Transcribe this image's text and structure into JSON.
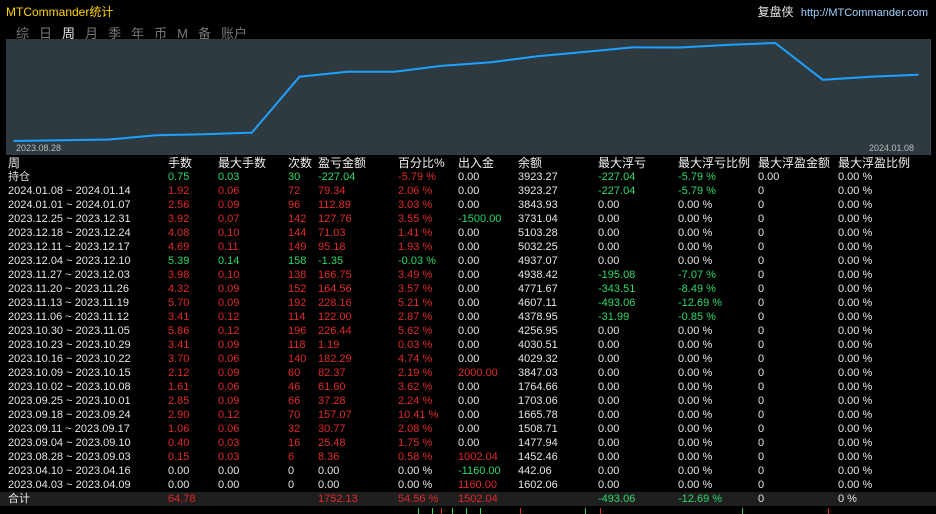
{
  "window": {
    "title": "MTCommander统计",
    "brand": "复盘侠",
    "url": "http://MTCommander.com"
  },
  "tabs": [
    {
      "label": "综",
      "active": false
    },
    {
      "label": "日",
      "active": false
    },
    {
      "label": "周",
      "active": true
    },
    {
      "label": "月",
      "active": false
    },
    {
      "label": "季",
      "active": false
    },
    {
      "label": "年",
      "active": false
    },
    {
      "label": "币",
      "active": false
    },
    {
      "label": "M",
      "active": false
    },
    {
      "label": "备",
      "active": false
    },
    {
      "label": "账户",
      "active": false
    }
  ],
  "colors": {
    "chart_bg": "#2e3a40",
    "line": "#1ea0ff",
    "profit": "#e02a2a",
    "loss": "#2ad96a",
    "title": "#ffd200"
  },
  "chart_data": {
    "type": "line",
    "x_start_label": "2023.08.28",
    "x_end_label": "2024.01.08",
    "x": [
      "2023.08.28",
      "2023.09.04",
      "2023.09.11",
      "2023.09.18",
      "2023.09.25",
      "2023.10.02",
      "2023.10.09",
      "2023.10.16",
      "2023.10.23",
      "2023.10.30",
      "2023.11.06",
      "2023.11.13",
      "2023.11.20",
      "2023.11.27",
      "2023.12.04",
      "2023.12.11",
      "2023.12.18",
      "2023.12.25",
      "2024.01.01",
      "2024.01.08"
    ],
    "values": [
      1452.46,
      1477.94,
      1508.71,
      1665.78,
      1703.06,
      1764.66,
      3847.03,
      4029.32,
      4030.51,
      4256.95,
      4378.95,
      4607.11,
      4771.67,
      4938.42,
      4937.07,
      5032.25,
      5103.28,
      3731.04,
      3843.93,
      3923.27
    ],
    "grid": false
  },
  "table": {
    "columns": [
      "周",
      "手数",
      "最大手数",
      "次数",
      "盈亏金额",
      "百分比%",
      "出入金",
      "余额",
      "最大浮亏",
      "最大浮亏比例",
      "最大浮盈金额",
      "最大浮盈比例"
    ],
    "holding": {
      "cells": [
        "持仓",
        "0.75",
        "0.03",
        "30",
        "-227.04",
        "-5.79 %",
        "0.00",
        "3923.27",
        "-227.04",
        "-5.79 %",
        "0.00",
        "0.00 %"
      ],
      "colors": [
        "neu",
        "neg",
        "neg",
        "neg",
        "neg",
        "pos",
        "neu",
        "neu",
        "neg",
        "neg",
        "neu",
        "neu"
      ]
    },
    "rows": [
      {
        "cells": [
          "2024.01.08 ~ 2024.01.14",
          "1.92",
          "0.06",
          "72",
          "79.34",
          "2.06 %",
          "0.00",
          "3923.27",
          "-227.04",
          "-5.79 %",
          "0",
          "0.00 %"
        ],
        "colors": [
          "neu",
          "pos",
          "pos",
          "pos",
          "pos",
          "pos",
          "neu",
          "neu",
          "neg",
          "neg",
          "neu",
          "neu"
        ]
      },
      {
        "cells": [
          "2024.01.01 ~ 2024.01.07",
          "2.56",
          "0.09",
          "96",
          "112.89",
          "3.03 %",
          "0.00",
          "3843.93",
          "0.00",
          "0.00 %",
          "0",
          "0.00 %"
        ],
        "colors": [
          "neu",
          "pos",
          "pos",
          "pos",
          "pos",
          "pos",
          "neu",
          "neu",
          "neu",
          "neu",
          "neu",
          "neu"
        ]
      },
      {
        "cells": [
          "2023.12.25 ~ 2023.12.31",
          "3.92",
          "0.07",
          "142",
          "127.76",
          "3.55 %",
          "-1500.00",
          "3731.04",
          "0.00",
          "0.00 %",
          "0",
          "0.00 %"
        ],
        "colors": [
          "neu",
          "pos",
          "pos",
          "pos",
          "pos",
          "pos",
          "neg",
          "neu",
          "neu",
          "neu",
          "neu",
          "neu"
        ]
      },
      {
        "cells": [
          "2023.12.18 ~ 2023.12.24",
          "4.08",
          "0.10",
          "144",
          "71.03",
          "1.41 %",
          "0.00",
          "5103.28",
          "0.00",
          "0.00 %",
          "0",
          "0.00 %"
        ],
        "colors": [
          "neu",
          "pos",
          "pos",
          "pos",
          "pos",
          "pos",
          "neu",
          "neu",
          "neu",
          "neu",
          "neu",
          "neu"
        ]
      },
      {
        "cells": [
          "2023.12.11 ~ 2023.12.17",
          "4.69",
          "0.11",
          "149",
          "95.18",
          "1.93 %",
          "0.00",
          "5032.25",
          "0.00",
          "0.00 %",
          "0",
          "0.00 %"
        ],
        "colors": [
          "neu",
          "pos",
          "pos",
          "pos",
          "pos",
          "pos",
          "neu",
          "neu",
          "neu",
          "neu",
          "neu",
          "neu"
        ]
      },
      {
        "cells": [
          "2023.12.04 ~ 2023.12.10",
          "5.39",
          "0.14",
          "158",
          "-1.35",
          "-0.03 %",
          "0.00",
          "4937.07",
          "0.00",
          "0.00 %",
          "0",
          "0.00 %"
        ],
        "colors": [
          "neu",
          "neg",
          "neg",
          "neg",
          "neg",
          "neg",
          "neu",
          "neu",
          "neu",
          "neu",
          "neu",
          "neu"
        ]
      },
      {
        "cells": [
          "2023.11.27 ~ 2023.12.03",
          "3.98",
          "0.10",
          "138",
          "166.75",
          "3.49 %",
          "0.00",
          "4938.42",
          "-195.08",
          "-7.07 %",
          "0",
          "0.00 %"
        ],
        "colors": [
          "neu",
          "pos",
          "pos",
          "pos",
          "pos",
          "pos",
          "neu",
          "neu",
          "neg",
          "neg",
          "neu",
          "neu"
        ]
      },
      {
        "cells": [
          "2023.11.20 ~ 2023.11.26",
          "4.32",
          "0.09",
          "152",
          "164.56",
          "3.57 %",
          "0.00",
          "4771.67",
          "-343.51",
          "-8.49 %",
          "0",
          "0.00 %"
        ],
        "colors": [
          "neu",
          "pos",
          "pos",
          "pos",
          "pos",
          "pos",
          "neu",
          "neu",
          "neg",
          "neg",
          "neu",
          "neu"
        ]
      },
      {
        "cells": [
          "2023.11.13 ~ 2023.11.19",
          "5.70",
          "0.09",
          "192",
          "228.16",
          "5.21 %",
          "0.00",
          "4607.11",
          "-493.06",
          "-12.69 %",
          "0",
          "0.00 %"
        ],
        "colors": [
          "neu",
          "pos",
          "pos",
          "pos",
          "pos",
          "pos",
          "neu",
          "neu",
          "neg",
          "neg",
          "neu",
          "neu"
        ]
      },
      {
        "cells": [
          "2023.11.06 ~ 2023.11.12",
          "3.41",
          "0.12",
          "114",
          "122.00",
          "2.87 %",
          "0.00",
          "4378.95",
          "-31.99",
          "-0.85 %",
          "0",
          "0.00 %"
        ],
        "colors": [
          "neu",
          "pos",
          "pos",
          "pos",
          "pos",
          "pos",
          "neu",
          "neu",
          "neg",
          "neg",
          "neu",
          "neu"
        ]
      },
      {
        "cells": [
          "2023.10.30 ~ 2023.11.05",
          "5.86",
          "0.12",
          "196",
          "226.44",
          "5.62 %",
          "0.00",
          "4256.95",
          "0.00",
          "0.00 %",
          "0",
          "0.00 %"
        ],
        "colors": [
          "neu",
          "pos",
          "pos",
          "pos",
          "pos",
          "pos",
          "neu",
          "neu",
          "neu",
          "neu",
          "neu",
          "neu"
        ]
      },
      {
        "cells": [
          "2023.10.23 ~ 2023.10.29",
          "3.41",
          "0.09",
          "118",
          "1.19",
          "0.03 %",
          "0.00",
          "4030.51",
          "0.00",
          "0.00 %",
          "0",
          "0.00 %"
        ],
        "colors": [
          "neu",
          "pos",
          "pos",
          "pos",
          "pos",
          "pos",
          "neu",
          "neu",
          "neu",
          "neu",
          "neu",
          "neu"
        ]
      },
      {
        "cells": [
          "2023.10.16 ~ 2023.10.22",
          "3.70",
          "0.06",
          "140",
          "182.29",
          "4.74 %",
          "0.00",
          "4029.32",
          "0.00",
          "0.00 %",
          "0",
          "0.00 %"
        ],
        "colors": [
          "neu",
          "pos",
          "pos",
          "pos",
          "pos",
          "pos",
          "neu",
          "neu",
          "neu",
          "neu",
          "neu",
          "neu"
        ]
      },
      {
        "cells": [
          "2023.10.09 ~ 2023.10.15",
          "2.12",
          "0.09",
          "60",
          "82.37",
          "2.19 %",
          "2000.00",
          "3847.03",
          "0.00",
          "0.00 %",
          "0",
          "0.00 %"
        ],
        "colors": [
          "neu",
          "pos",
          "pos",
          "pos",
          "pos",
          "pos",
          "pos",
          "neu",
          "neu",
          "neu",
          "neu",
          "neu"
        ]
      },
      {
        "cells": [
          "2023.10.02 ~ 2023.10.08",
          "1.61",
          "0.06",
          "46",
          "61.60",
          "3.62 %",
          "0.00",
          "1764.66",
          "0.00",
          "0.00 %",
          "0",
          "0.00 %"
        ],
        "colors": [
          "neu",
          "pos",
          "pos",
          "pos",
          "pos",
          "pos",
          "neu",
          "neu",
          "neu",
          "neu",
          "neu",
          "neu"
        ]
      },
      {
        "cells": [
          "2023.09.25 ~ 2023.10.01",
          "2.85",
          "0.09",
          "66",
          "37.28",
          "2.24 %",
          "0.00",
          "1703.06",
          "0.00",
          "0.00 %",
          "0",
          "0.00 %"
        ],
        "colors": [
          "neu",
          "pos",
          "pos",
          "pos",
          "pos",
          "pos",
          "neu",
          "neu",
          "neu",
          "neu",
          "neu",
          "neu"
        ]
      },
      {
        "cells": [
          "2023.09.18 ~ 2023.09.24",
          "2.90",
          "0.12",
          "70",
          "157.07",
          "10.41 %",
          "0.00",
          "1665.78",
          "0.00",
          "0.00 %",
          "0",
          "0.00 %"
        ],
        "colors": [
          "neu",
          "pos",
          "pos",
          "pos",
          "pos",
          "pos",
          "neu",
          "neu",
          "neu",
          "neu",
          "neu",
          "neu"
        ]
      },
      {
        "cells": [
          "2023.09.11 ~ 2023.09.17",
          "1.06",
          "0.06",
          "32",
          "30.77",
          "2.08 %",
          "0.00",
          "1508.71",
          "0.00",
          "0.00 %",
          "0",
          "0.00 %"
        ],
        "colors": [
          "neu",
          "pos",
          "pos",
          "pos",
          "pos",
          "pos",
          "neu",
          "neu",
          "neu",
          "neu",
          "neu",
          "neu"
        ]
      },
      {
        "cells": [
          "2023.09.04 ~ 2023.09.10",
          "0.40",
          "0.03",
          "16",
          "25.48",
          "1.75 %",
          "0.00",
          "1477.94",
          "0.00",
          "0.00 %",
          "0",
          "0.00 %"
        ],
        "colors": [
          "neu",
          "pos",
          "pos",
          "pos",
          "pos",
          "pos",
          "neu",
          "neu",
          "neu",
          "neu",
          "neu",
          "neu"
        ]
      },
      {
        "cells": [
          "2023.08.28 ~ 2023.09.03",
          "0.15",
          "0.03",
          "6",
          "8.36",
          "0.58 %",
          "1002.04",
          "1452.46",
          "0.00",
          "0.00 %",
          "0",
          "0.00 %"
        ],
        "colors": [
          "neu",
          "pos",
          "pos",
          "pos",
          "pos",
          "pos",
          "pos",
          "neu",
          "neu",
          "neu",
          "neu",
          "neu"
        ]
      },
      {
        "cells": [
          "2023.04.10 ~ 2023.04.16",
          "0.00",
          "0.00",
          "0",
          "0.00",
          "0.00 %",
          "-1160.00",
          "442.06",
          "0.00",
          "0.00 %",
          "0",
          "0.00 %"
        ],
        "colors": [
          "neu",
          "neu",
          "neu",
          "neu",
          "neu",
          "neu",
          "neg",
          "neu",
          "neu",
          "neu",
          "neu",
          "neu"
        ]
      },
      {
        "cells": [
          "2023.04.03 ~ 2023.04.09",
          "0.00",
          "0.00",
          "0",
          "0.00",
          "0.00 %",
          "1160.00",
          "1602.06",
          "0.00",
          "0.00 %",
          "0",
          "0.00 %"
        ],
        "colors": [
          "neu",
          "neu",
          "neu",
          "neu",
          "neu",
          "neu",
          "pos",
          "neu",
          "neu",
          "neu",
          "neu",
          "neu"
        ]
      }
    ],
    "total": {
      "cells": [
        "合计",
        "64.78",
        "",
        "",
        "1752.13",
        "54.56 %",
        "1502.04",
        "",
        "-493.06",
        "-12.69 %",
        "0",
        "0 %"
      ],
      "colors": [
        "neu",
        "pos",
        "neu",
        "neu",
        "pos",
        "pos",
        "pos",
        "neu",
        "neg",
        "neg",
        "neu",
        "neu"
      ]
    }
  }
}
